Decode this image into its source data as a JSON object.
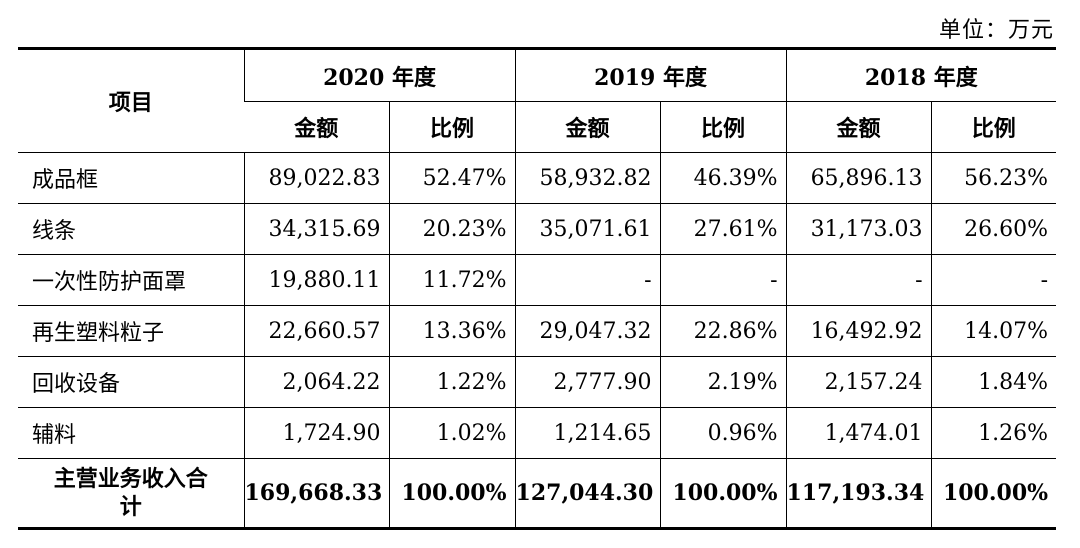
{
  "unit_label": "单位：万元",
  "header": {
    "item": "项目",
    "years": [
      "2020 年度",
      "2019 年度",
      "2018 年度"
    ],
    "amount": "金额",
    "ratio": "比例"
  },
  "rows": [
    {
      "name": "成品框",
      "a2020": "89,022.83",
      "r2020": "52.47%",
      "a2019": "58,932.82",
      "r2019": "46.39%",
      "a2018": "65,896.13",
      "r2018": "56.23%"
    },
    {
      "name": "线条",
      "a2020": "34,315.69",
      "r2020": "20.23%",
      "a2019": "35,071.61",
      "r2019": "27.61%",
      "a2018": "31,173.03",
      "r2018": "26.60%"
    },
    {
      "name": "一次性防护面罩",
      "a2020": "19,880.11",
      "r2020": "11.72%",
      "a2019": "-",
      "r2019": "-",
      "a2018": "-",
      "r2018": "-"
    },
    {
      "name": "再生塑料粒子",
      "a2020": "22,660.57",
      "r2020": "13.36%",
      "a2019": "29,047.32",
      "r2019": "22.86%",
      "a2018": "16,492.92",
      "r2018": "14.07%"
    },
    {
      "name": "回收设备",
      "a2020": "2,064.22",
      "r2020": "1.22%",
      "a2019": "2,777.90",
      "r2019": "2.19%",
      "a2018": "2,157.24",
      "r2018": "1.84%"
    },
    {
      "name": "辅料",
      "a2020": "1,724.90",
      "r2020": "1.02%",
      "a2019": "1,214.65",
      "r2019": "0.96%",
      "a2018": "1,474.01",
      "r2018": "1.26%"
    }
  ],
  "total": {
    "name_line1": "主营业务收入合",
    "name_line2": "计",
    "a2020": "169,668.33",
    "r2020": "100.00%",
    "a2019": "127,044.30",
    "r2019": "100.00%",
    "a2018": "117,193.34",
    "r2018": "100.00%"
  }
}
